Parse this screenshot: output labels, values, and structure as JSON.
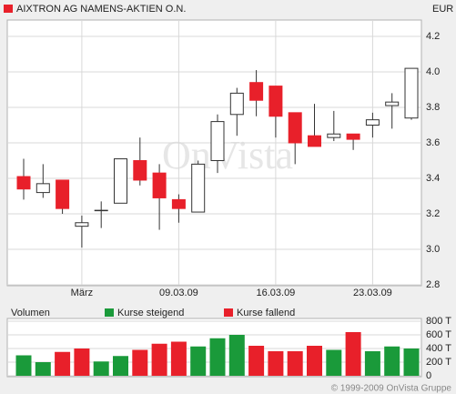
{
  "title": "AIXTRON AG NAMENS-AKTIEN O.N.",
  "currency": "EUR",
  "watermark": "OnVista",
  "copyright": "© 1999-2009 OnVista Gruppe",
  "chart_data": [
    {
      "type": "candlestick",
      "categories": [
        null,
        null,
        null,
        "März",
        null,
        null,
        null,
        null,
        "09.03.09",
        null,
        null,
        null,
        null,
        "16.03.09",
        null,
        null,
        null,
        null,
        "23.03.09",
        null,
        null
      ],
      "open": [
        3.41,
        3.32,
        3.39,
        3.13,
        3.22,
        3.26,
        3.5,
        3.43,
        3.28,
        3.21,
        3.5,
        3.76,
        3.94,
        3.92,
        3.77,
        3.64,
        3.63,
        3.65,
        3.7,
        3.81,
        3.74
      ],
      "high": [
        3.51,
        3.48,
        3.39,
        3.19,
        3.27,
        3.51,
        3.63,
        3.48,
        3.31,
        3.5,
        3.76,
        3.91,
        4.01,
        3.92,
        3.77,
        3.82,
        3.78,
        3.65,
        3.77,
        3.88,
        4.02
      ],
      "low": [
        3.28,
        3.29,
        3.2,
        3.01,
        3.12,
        3.26,
        3.36,
        3.11,
        3.15,
        3.21,
        3.43,
        3.64,
        3.75,
        3.63,
        3.48,
        3.58,
        3.61,
        3.56,
        3.63,
        3.68,
        3.73
      ],
      "close": [
        3.34,
        3.37,
        3.23,
        3.15,
        3.22,
        3.51,
        3.39,
        3.29,
        3.23,
        3.48,
        3.72,
        3.88,
        3.84,
        3.75,
        3.6,
        3.58,
        3.65,
        3.62,
        3.73,
        3.83,
        4.02
      ],
      "up_color": "#ffffff",
      "down_color": "#e8202a",
      "ylim": [
        2.8,
        4.2
      ],
      "yticks": [
        2.8,
        {
          "value": 3,
          "label": "3.0"
        },
        3.2,
        3.4,
        3.6,
        3.8,
        {
          "value": 4,
          "label": "4.0"
        },
        4.2
      ],
      "grid": true
    },
    {
      "type": "bar",
      "title": "Volumen",
      "series": [
        {
          "name": "Kurse steigend",
          "color": "#1a9a3a",
          "values": [
            300,
            200,
            null,
            null,
            210,
            290,
            null,
            null,
            null,
            430,
            550,
            600,
            null,
            null,
            null,
            null,
            380,
            null,
            360,
            430,
            400
          ]
        },
        {
          "name": "Kurse fallend",
          "color": "#e8202a",
          "values": [
            null,
            null,
            350,
            400,
            null,
            null,
            380,
            470,
            500,
            null,
            null,
            null,
            440,
            360,
            360,
            440,
            null,
            640,
            null,
            null,
            null
          ]
        }
      ],
      "ylim": [
        0,
        800
      ],
      "yticks": [
        0,
        {
          "value": 200,
          "label": "200 T"
        },
        {
          "value": 400,
          "label": "400 T"
        },
        {
          "value": 600,
          "label": "600 T"
        },
        {
          "value": 800,
          "label": "800 T"
        }
      ],
      "grid": true
    }
  ]
}
